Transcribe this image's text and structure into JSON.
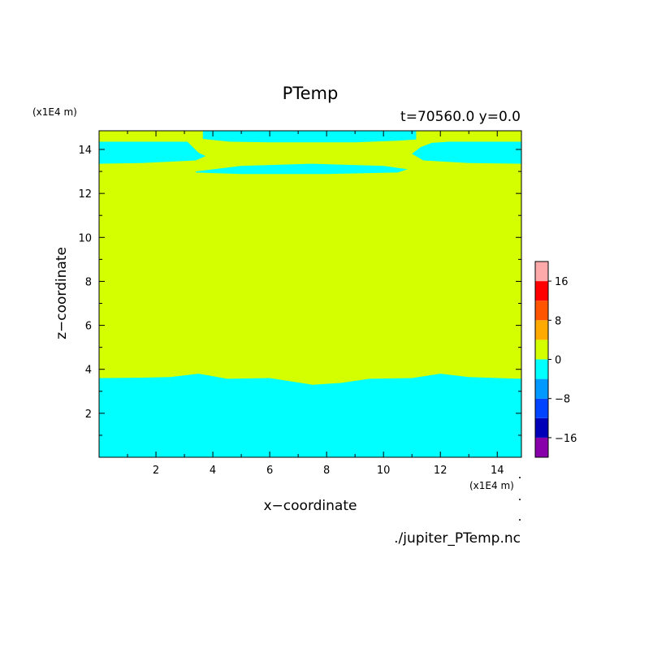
{
  "chart_data": {
    "type": "heatmap",
    "title": "PTemp",
    "subtitle": "t=70560.0 y=0.0",
    "xlabel": "x−coordinate",
    "ylabel": "z−coordinate",
    "x_unit": "(x1E4 m)",
    "y_unit": "(x1E4 m)",
    "source_file": "./jupiter_PTemp.nc",
    "xlim": [
      0,
      14.85
    ],
    "ylim": [
      0,
      14.85
    ],
    "x_ticks": [
      2,
      4,
      6,
      8,
      10,
      12,
      14
    ],
    "y_ticks": [
      2,
      4,
      6,
      8,
      10,
      12,
      14
    ],
    "background_class": "0 to 4",
    "colorbar": {
      "levels": [
        {
          "min": -20,
          "max": -16,
          "color": "#8800aa"
        },
        {
          "min": -16,
          "max": -12,
          "color": "#0000b8"
        },
        {
          "min": -12,
          "max": -8,
          "color": "#0044ff"
        },
        {
          "min": -8,
          "max": -4,
          "color": "#0099ff"
        },
        {
          "min": -4,
          "max": 0,
          "color": "#00ffff"
        },
        {
          "min": 0,
          "max": 4,
          "color": "#d4ff00"
        },
        {
          "min": 4,
          "max": 8,
          "color": "#ffaa00"
        },
        {
          "min": 8,
          "max": 12,
          "color": "#ff5500"
        },
        {
          "min": 12,
          "max": 16,
          "color": "#ff0000"
        },
        {
          "min": 16,
          "max": 20,
          "color": "#ffaaaa"
        }
      ],
      "tick_labels": [
        {
          "value": 16,
          "label": "16"
        },
        {
          "value": 8,
          "label": "8"
        },
        {
          "value": 0,
          "label": "0"
        },
        {
          "value": -8,
          "label": "−8"
        },
        {
          "value": -16,
          "label": "−16"
        }
      ]
    },
    "regions": [
      {
        "name": "lower-negative-layer",
        "class": "-4 to 0",
        "color": "#00ffff",
        "boundary": [
          [
            0,
            3.6
          ],
          [
            1.5,
            3.62
          ],
          [
            2.5,
            3.65
          ],
          [
            3.5,
            3.8
          ],
          [
            4.5,
            3.57
          ],
          [
            6.0,
            3.6
          ],
          [
            7.5,
            3.3
          ],
          [
            8.5,
            3.38
          ],
          [
            9.5,
            3.57
          ],
          [
            11.0,
            3.6
          ],
          [
            12.0,
            3.8
          ],
          [
            13.0,
            3.65
          ],
          [
            14.85,
            3.57
          ]
        ]
      },
      {
        "name": "upper-left-negative-band",
        "class": "-4 to 0",
        "color": "#00ffff",
        "polygon": [
          [
            0,
            14.35
          ],
          [
            3.1,
            14.35
          ],
          [
            3.3,
            14.1
          ],
          [
            3.5,
            13.85
          ],
          [
            3.75,
            13.7
          ],
          [
            3.4,
            13.5
          ],
          [
            1.5,
            13.38
          ],
          [
            0,
            13.35
          ]
        ]
      },
      {
        "name": "upper-right-negative-band",
        "class": "-4 to 0",
        "color": "#00ffff",
        "polygon": [
          [
            14.85,
            14.35
          ],
          [
            12.3,
            14.35
          ],
          [
            11.7,
            14.3
          ],
          [
            11.3,
            14.1
          ],
          [
            11.0,
            13.8
          ],
          [
            11.4,
            13.5
          ],
          [
            13.0,
            13.38
          ],
          [
            14.85,
            13.35
          ]
        ]
      },
      {
        "name": "top-center-negative-band",
        "class": "-4 to 0",
        "color": "#00ffff",
        "polygon": [
          [
            3.65,
            14.85
          ],
          [
            11.15,
            14.85
          ],
          [
            11.15,
            14.45
          ],
          [
            10.5,
            14.4
          ],
          [
            9.0,
            14.32
          ],
          [
            6.0,
            14.32
          ],
          [
            4.6,
            14.35
          ],
          [
            3.65,
            14.48
          ]
        ]
      },
      {
        "name": "thin-lens-negative-band",
        "class": "-4 to 0",
        "color": "#00ffff",
        "polygon": [
          [
            3.4,
            13.0
          ],
          [
            5.0,
            13.25
          ],
          [
            7.5,
            13.35
          ],
          [
            10.0,
            13.25
          ],
          [
            10.85,
            13.1
          ],
          [
            10.5,
            12.95
          ],
          [
            8.0,
            12.88
          ],
          [
            5.0,
            12.88
          ],
          [
            3.4,
            12.95
          ]
        ]
      }
    ]
  }
}
